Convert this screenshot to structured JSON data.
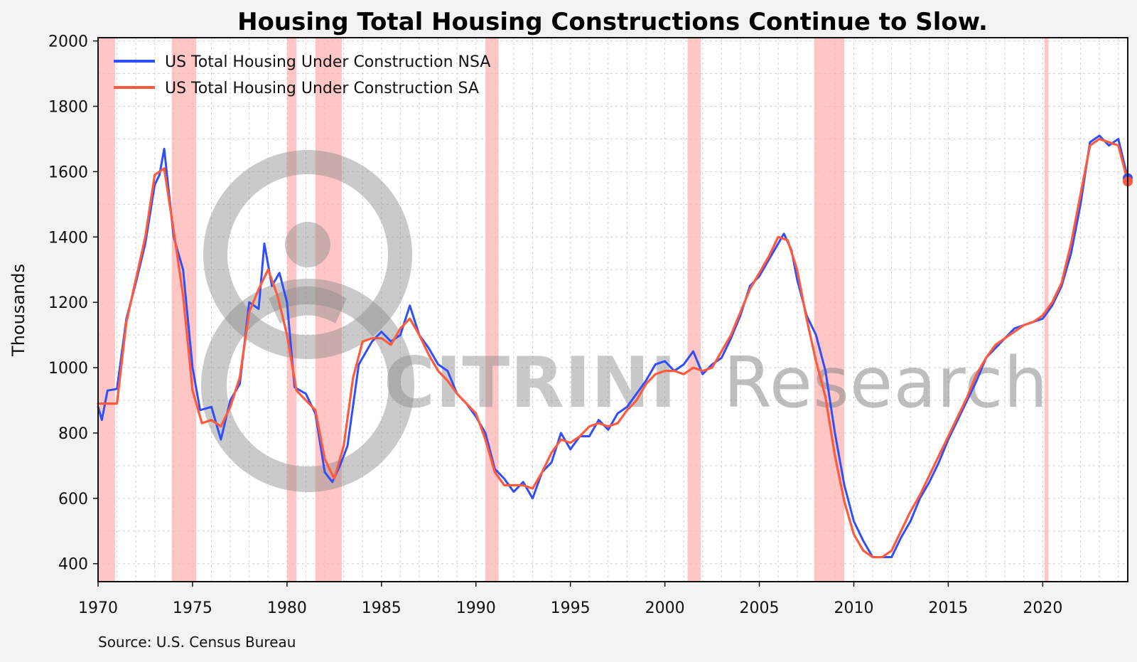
{
  "page": {
    "title": "Housing Total Housing Constructions Continue to Slow.",
    "y_axis_label": "Thousands",
    "source_note": "Source: U.S. Census Bureau",
    "watermark": {
      "strong_text": "CITRINI",
      "light_text": "Research"
    }
  },
  "colors": {
    "background": "#f3f3f3",
    "plot_background": "#ffffff",
    "grid": "#cfcfcf",
    "recession": "#ffb3b3",
    "nsa_series": "#2f4fff",
    "sa_series": "#ff5a3d",
    "watermark": "#8a8a8a"
  },
  "chart_data": {
    "type": "line",
    "title": "Housing Total Housing Constructions Continue to Slow.",
    "xlabel": "",
    "ylabel": "Thousands",
    "xlim": [
      1970,
      2024.5
    ],
    "ylim": [
      345,
      2010
    ],
    "x_ticks": [
      1970,
      1975,
      1980,
      1985,
      1990,
      1995,
      2000,
      2005,
      2010,
      2015,
      2020
    ],
    "y_ticks": [
      400,
      600,
      800,
      1000,
      1200,
      1400,
      1600,
      1800,
      2000
    ],
    "grid": true,
    "legend_position": "top-left",
    "recessions": [
      {
        "start": 1970.0,
        "end": 1970.9
      },
      {
        "start": 1973.9,
        "end": 1975.2
      },
      {
        "start": 1980.0,
        "end": 1980.5
      },
      {
        "start": 1981.5,
        "end": 1982.9
      },
      {
        "start": 1990.5,
        "end": 1991.2
      },
      {
        "start": 2001.2,
        "end": 2001.9
      },
      {
        "start": 2007.9,
        "end": 2009.5
      },
      {
        "start": 2020.1,
        "end": 2020.3
      }
    ],
    "series": [
      {
        "name": "US Total Housing Under Construction NSA",
        "color": "#2f4fff",
        "x": [
          1970.0,
          1970.2,
          1970.5,
          1971.0,
          1971.5,
          1972.0,
          1972.5,
          1973.0,
          1973.25,
          1973.5,
          1974.0,
          1974.5,
          1975.0,
          1975.4,
          1976.0,
          1976.5,
          1977.0,
          1977.5,
          1978.0,
          1978.5,
          1978.8,
          1979.2,
          1979.6,
          1980.0,
          1980.4,
          1981.0,
          1981.5,
          1982.0,
          1982.4,
          1982.8,
          1983.2,
          1983.8,
          1984.5,
          1985.0,
          1985.5,
          1986.0,
          1986.5,
          1987.0,
          1987.5,
          1988.0,
          1988.5,
          1989.0,
          1989.5,
          1990.0,
          1990.5,
          1991.0,
          1991.5,
          1992.0,
          1992.5,
          1993.0,
          1993.5,
          1994.0,
          1994.5,
          1995.0,
          1995.5,
          1996.0,
          1996.5,
          1997.0,
          1997.5,
          1998.0,
          1998.5,
          1999.0,
          1999.5,
          2000.0,
          2000.5,
          2001.0,
          2001.5,
          2002.0,
          2002.5,
          2003.0,
          2003.5,
          2004.0,
          2004.5,
          2005.0,
          2005.5,
          2006.0,
          2006.3,
          2006.7,
          2007.0,
          2007.5,
          2008.0,
          2008.5,
          2009.0,
          2009.5,
          2010.0,
          2010.5,
          2011.0,
          2011.5,
          2012.0,
          2012.5,
          2013.0,
          2013.5,
          2014.0,
          2014.5,
          2015.0,
          2015.5,
          2016.0,
          2016.5,
          2017.0,
          2017.5,
          2018.0,
          2018.5,
          2019.0,
          2019.5,
          2020.0,
          2020.5,
          2021.0,
          2021.5,
          2022.0,
          2022.5,
          2023.0,
          2023.5,
          2024.0,
          2024.5
        ],
        "values": [
          880,
          840,
          930,
          935,
          1150,
          1260,
          1380,
          1560,
          1590,
          1670,
          1400,
          1300,
          1000,
          870,
          880,
          780,
          900,
          950,
          1200,
          1180,
          1380,
          1250,
          1290,
          1200,
          940,
          920,
          860,
          680,
          650,
          700,
          760,
          1010,
          1080,
          1110,
          1080,
          1100,
          1190,
          1100,
          1060,
          1010,
          990,
          920,
          890,
          850,
          800,
          690,
          660,
          620,
          650,
          600,
          680,
          710,
          800,
          750,
          790,
          790,
          840,
          810,
          860,
          880,
          920,
          960,
          1010,
          1020,
          990,
          1010,
          1050,
          980,
          1010,
          1030,
          1090,
          1160,
          1250,
          1280,
          1330,
          1380,
          1410,
          1360,
          1270,
          1160,
          1100,
          990,
          800,
          640,
          530,
          470,
          420,
          420,
          420,
          480,
          530,
          600,
          650,
          710,
          780,
          840,
          900,
          960,
          1030,
          1060,
          1090,
          1120,
          1130,
          1140,
          1150,
          1190,
          1250,
          1350,
          1500,
          1690,
          1710,
          1680,
          1700,
          1580
        ]
      },
      {
        "name": "US Total Housing Under Construction SA",
        "color": "#ff5a3d",
        "x": [
          1970.0,
          1970.5,
          1971.0,
          1971.5,
          1972.0,
          1972.5,
          1973.0,
          1973.5,
          1974.0,
          1974.5,
          1975.0,
          1975.5,
          1976.0,
          1976.5,
          1977.0,
          1977.5,
          1978.0,
          1978.5,
          1979.0,
          1979.5,
          1980.0,
          1980.5,
          1981.0,
          1981.5,
          1982.0,
          1982.5,
          1983.0,
          1983.5,
          1984.0,
          1984.5,
          1985.0,
          1985.5,
          1986.0,
          1986.5,
          1987.0,
          1987.5,
          1988.0,
          1988.5,
          1989.0,
          1989.5,
          1990.0,
          1990.5,
          1991.0,
          1991.5,
          1992.0,
          1992.5,
          1993.0,
          1993.5,
          1994.0,
          1994.5,
          1995.0,
          1995.5,
          1996.0,
          1996.5,
          1997.0,
          1997.5,
          1998.0,
          1998.5,
          1999.0,
          1999.5,
          2000.0,
          2000.5,
          2001.0,
          2001.5,
          2002.0,
          2002.5,
          2003.0,
          2003.5,
          2004.0,
          2004.5,
          2005.0,
          2005.5,
          2006.0,
          2006.5,
          2007.0,
          2007.5,
          2008.0,
          2008.5,
          2009.0,
          2009.5,
          2010.0,
          2010.5,
          2011.0,
          2011.5,
          2012.0,
          2012.5,
          2013.0,
          2013.5,
          2014.0,
          2014.5,
          2015.0,
          2015.5,
          2016.0,
          2016.5,
          2017.0,
          2017.5,
          2018.0,
          2018.5,
          2019.0,
          2019.5,
          2020.0,
          2020.5,
          2021.0,
          2021.5,
          2022.0,
          2022.5,
          2023.0,
          2023.5,
          2024.0,
          2024.5
        ],
        "values": [
          890,
          890,
          890,
          1140,
          1270,
          1400,
          1590,
          1610,
          1420,
          1220,
          930,
          830,
          840,
          820,
          880,
          970,
          1170,
          1240,
          1300,
          1220,
          1100,
          930,
          900,
          870,
          720,
          660,
          760,
          970,
          1080,
          1090,
          1090,
          1070,
          1120,
          1150,
          1100,
          1040,
          990,
          960,
          920,
          890,
          860,
          780,
          680,
          640,
          640,
          640,
          630,
          680,
          740,
          780,
          770,
          790,
          820,
          830,
          820,
          830,
          870,
          900,
          950,
          980,
          990,
          990,
          980,
          1000,
          990,
          1000,
          1050,
          1100,
          1170,
          1240,
          1290,
          1340,
          1400,
          1390,
          1300,
          1150,
          1020,
          910,
          730,
          590,
          490,
          440,
          420,
          420,
          440,
          500,
          560,
          610,
          670,
          730,
          790,
          850,
          910,
          980,
          1030,
          1070,
          1090,
          1110,
          1130,
          1140,
          1160,
          1200,
          1260,
          1380,
          1530,
          1680,
          1700,
          1690,
          1680,
          1570
        ]
      }
    ]
  }
}
